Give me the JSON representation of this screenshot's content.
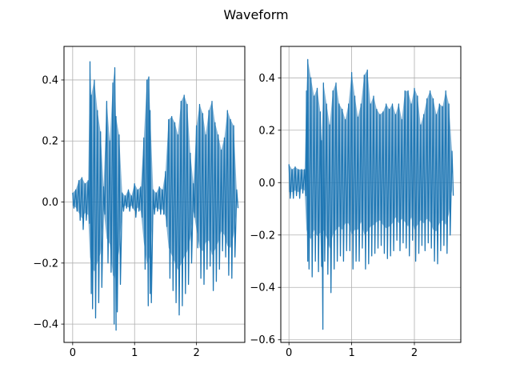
{
  "figure": {
    "suptitle": "Waveform",
    "colors": {
      "series": "#1f77b4",
      "grid": "#b0b0b0",
      "axis": "#000000"
    }
  },
  "chart_data": [
    {
      "type": "line",
      "title": "",
      "xlabel": "",
      "ylabel": "",
      "grid": true,
      "xlim": [
        -0.14,
        2.78
      ],
      "ylim": [
        -0.46,
        0.51
      ],
      "xticks": [
        0,
        1,
        2
      ],
      "xtick_labels": [
        "0",
        "1",
        "2"
      ],
      "yticks": [
        -0.4,
        -0.2,
        0.0,
        0.2,
        0.4
      ],
      "ytick_labels": [
        "−0.4",
        "−0.2",
        "0.0",
        "0.2",
        "0.4"
      ],
      "series": [
        {
          "color": "#1f77b4",
          "x": [
            0.0,
            0.05,
            0.1,
            0.15,
            0.2,
            0.25,
            0.28,
            0.3,
            0.35,
            0.4,
            0.45,
            0.5,
            0.55,
            0.6,
            0.65,
            0.68,
            0.7,
            0.75,
            0.8,
            0.85,
            0.9,
            0.95,
            1.0,
            1.05,
            1.1,
            1.15,
            1.2,
            1.23,
            1.25,
            1.3,
            1.35,
            1.4,
            1.45,
            1.5,
            1.55,
            1.6,
            1.65,
            1.7,
            1.75,
            1.8,
            1.85,
            1.9,
            1.95,
            2.0,
            2.05,
            2.1,
            2.15,
            2.2,
            2.25,
            2.3,
            2.35,
            2.4,
            2.45,
            2.5,
            2.55,
            2.6,
            2.65
          ],
          "max": [
            0.03,
            0.04,
            0.07,
            0.08,
            0.06,
            0.07,
            0.46,
            0.35,
            0.4,
            0.3,
            0.23,
            0.05,
            0.33,
            0.2,
            0.39,
            0.44,
            0.28,
            0.22,
            0.03,
            0.02,
            0.04,
            0.02,
            0.06,
            0.04,
            0.05,
            0.21,
            0.4,
            0.41,
            0.3,
            0.04,
            0.03,
            0.05,
            0.04,
            0.1,
            0.27,
            0.28,
            0.26,
            0.22,
            0.33,
            0.35,
            0.32,
            0.16,
            0.06,
            0.25,
            0.32,
            0.29,
            0.22,
            0.3,
            0.33,
            0.26,
            0.22,
            0.17,
            0.21,
            0.3,
            0.27,
            0.25,
            0.04
          ],
          "min": [
            -0.02,
            -0.03,
            -0.06,
            -0.09,
            -0.06,
            -0.07,
            -0.3,
            -0.35,
            -0.38,
            -0.33,
            -0.28,
            -0.04,
            -0.2,
            -0.23,
            -0.4,
            -0.42,
            -0.36,
            -0.27,
            -0.03,
            -0.02,
            -0.03,
            -0.02,
            -0.05,
            -0.03,
            -0.05,
            -0.22,
            -0.34,
            -0.3,
            -0.33,
            -0.04,
            -0.03,
            -0.04,
            -0.04,
            -0.08,
            -0.25,
            -0.29,
            -0.33,
            -0.37,
            -0.34,
            -0.3,
            -0.27,
            -0.2,
            -0.05,
            -0.15,
            -0.25,
            -0.27,
            -0.22,
            -0.21,
            -0.29,
            -0.26,
            -0.22,
            -0.16,
            -0.18,
            -0.24,
            -0.25,
            -0.18,
            -0.02
          ]
        }
      ]
    },
    {
      "type": "line",
      "title": "",
      "xlabel": "",
      "ylabel": "",
      "grid": true,
      "xlim": [
        -0.13,
        2.74
      ],
      "ylim": [
        -0.61,
        0.52
      ],
      "xticks": [
        0,
        1,
        2
      ],
      "xtick_labels": [
        "0",
        "1",
        "2"
      ],
      "yticks": [
        -0.6,
        -0.4,
        -0.2,
        0.0,
        0.2,
        0.4
      ],
      "ytick_labels": [
        "−0.6",
        "−0.4",
        "−0.2",
        "0.0",
        "0.2",
        "0.4"
      ],
      "series": [
        {
          "color": "#1f77b4",
          "x": [
            0.0,
            0.05,
            0.1,
            0.15,
            0.2,
            0.25,
            0.28,
            0.3,
            0.35,
            0.4,
            0.45,
            0.5,
            0.52,
            0.55,
            0.6,
            0.65,
            0.7,
            0.75,
            0.8,
            0.85,
            0.9,
            0.95,
            1.0,
            1.05,
            1.1,
            1.15,
            1.2,
            1.25,
            1.3,
            1.35,
            1.4,
            1.45,
            1.5,
            1.55,
            1.6,
            1.65,
            1.7,
            1.75,
            1.8,
            1.85,
            1.9,
            1.95,
            2.0,
            2.05,
            2.1,
            2.15,
            2.2,
            2.25,
            2.3,
            2.35,
            2.4,
            2.45,
            2.5,
            2.55,
            2.6
          ],
          "max": [
            0.07,
            0.05,
            0.06,
            0.05,
            0.05,
            0.05,
            0.35,
            0.47,
            0.4,
            0.33,
            0.36,
            0.27,
            0.16,
            0.38,
            0.3,
            0.22,
            0.35,
            0.38,
            0.3,
            0.28,
            0.24,
            0.3,
            0.42,
            0.33,
            0.25,
            0.3,
            0.41,
            0.43,
            0.3,
            0.33,
            0.28,
            0.26,
            0.27,
            0.3,
            0.28,
            0.3,
            0.26,
            0.3,
            0.24,
            0.35,
            0.35,
            0.3,
            0.36,
            0.33,
            0.22,
            0.26,
            0.32,
            0.35,
            0.32,
            0.26,
            0.3,
            0.29,
            0.35,
            0.3,
            0.12
          ],
          "min": [
            -0.06,
            -0.06,
            -0.05,
            -0.06,
            -0.04,
            -0.05,
            -0.3,
            -0.33,
            -0.36,
            -0.3,
            -0.34,
            -0.32,
            -0.56,
            -0.3,
            -0.35,
            -0.42,
            -0.33,
            -0.3,
            -0.28,
            -0.3,
            -0.26,
            -0.26,
            -0.33,
            -0.3,
            -0.3,
            -0.25,
            -0.33,
            -0.31,
            -0.28,
            -0.27,
            -0.25,
            -0.24,
            -0.27,
            -0.29,
            -0.28,
            -0.26,
            -0.22,
            -0.26,
            -0.23,
            -0.25,
            -0.28,
            -0.22,
            -0.3,
            -0.27,
            -0.24,
            -0.26,
            -0.23,
            -0.25,
            -0.3,
            -0.31,
            -0.26,
            -0.24,
            -0.27,
            -0.2,
            -0.05
          ]
        }
      ]
    }
  ]
}
